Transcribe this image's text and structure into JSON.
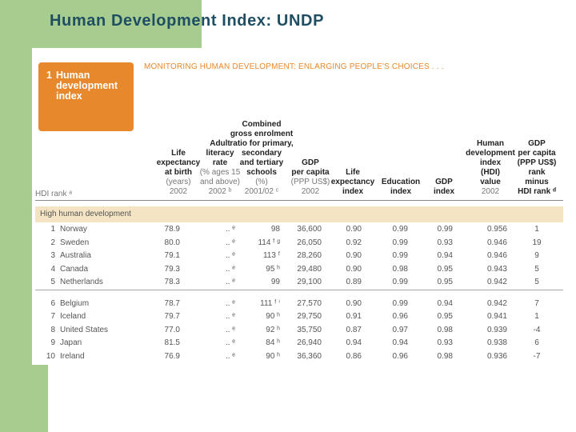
{
  "slide_title": "Human Development Index: UNDP",
  "report": {
    "box_number": "1",
    "box_lines": [
      "Human",
      "development",
      "index"
    ],
    "heading": "MONITORING HUMAN DEVELOPMENT: ENLARGING PEOPLE'S CHOICES . . .",
    "hdi_rank_label": "HDI rank ᵃ"
  },
  "columns": [
    {
      "bold": [
        "Life",
        "expectancy",
        "at birth"
      ],
      "gray": [
        "(years)",
        "2002"
      ]
    },
    {
      "bold": [
        "Adult",
        "literacy",
        "rate"
      ],
      "gray": [
        "(% ages 15",
        "and above)",
        "2002 ᵇ"
      ]
    },
    {
      "bold": [
        "Combined",
        "gross enrolment",
        "ratio for primary,",
        "secondary",
        "and tertiary",
        "schools"
      ],
      "gray": [
        "(%)",
        "2001/02 ᶜ"
      ]
    },
    {
      "bold": [
        "GDP",
        "per capita"
      ],
      "gray": [
        "(PPP US$)",
        "2002"
      ]
    },
    {
      "bold": [
        "Life",
        "expectancy",
        "index"
      ],
      "gray": []
    },
    {
      "bold": [
        "Education",
        "index"
      ],
      "gray": []
    },
    {
      "bold": [
        "GDP",
        "index"
      ],
      "gray": []
    },
    {
      "bold": [
        "Human",
        "development",
        "index",
        "(HDI)",
        "value"
      ],
      "gray": [
        "2002"
      ]
    },
    {
      "bold": [
        "GDP",
        "per capita",
        "(PPP US$)",
        "rank",
        "minus",
        "HDI rank ᵈ"
      ],
      "gray": []
    }
  ],
  "group_label": "High human development",
  "rows": [
    {
      "rank": "1",
      "country": "Norway",
      "life": "78.9",
      "literacy": ".. ᵉ",
      "enrol": "98",
      "gdp": "36,600",
      "lei": "0.90",
      "edu": "0.99",
      "gdpi": "0.99",
      "hdi": "0.956",
      "diff": "1"
    },
    {
      "rank": "2",
      "country": "Sweden",
      "life": "80.0",
      "literacy": ".. ᵉ",
      "enrol": "114 ᶠ ᵍ",
      "gdp": "26,050",
      "lei": "0.92",
      "edu": "0.99",
      "gdpi": "0.93",
      "hdi": "0.946",
      "diff": "19"
    },
    {
      "rank": "3",
      "country": "Australia",
      "life": "79.1",
      "literacy": ".. ᵉ",
      "enrol": "113 ᶠ",
      "gdp": "28,260",
      "lei": "0.90",
      "edu": "0.99",
      "gdpi": "0.94",
      "hdi": "0.946",
      "diff": "9"
    },
    {
      "rank": "4",
      "country": "Canada",
      "life": "79.3",
      "literacy": ".. ᵉ",
      "enrol": "95 ʰ",
      "gdp": "29,480",
      "lei": "0.90",
      "edu": "0.98",
      "gdpi": "0.95",
      "hdi": "0.943",
      "diff": "5"
    },
    {
      "rank": "5",
      "country": "Netherlands",
      "life": "78.3",
      "literacy": ".. ᵉ",
      "enrol": "99",
      "gdp": "29,100",
      "lei": "0.89",
      "edu": "0.99",
      "gdpi": "0.95",
      "hdi": "0.942",
      "diff": "5"
    },
    {
      "rank": "6",
      "country": "Belgium",
      "life": "78.7",
      "literacy": ".. ᵉ",
      "enrol": "111 ᶠ ⁱ",
      "gdp": "27,570",
      "lei": "0.90",
      "edu": "0.99",
      "gdpi": "0.94",
      "hdi": "0.942",
      "diff": "7"
    },
    {
      "rank": "7",
      "country": "Iceland",
      "life": "79.7",
      "literacy": ".. ᵉ",
      "enrol": "90 ʰ",
      "gdp": "29,750",
      "lei": "0.91",
      "edu": "0.96",
      "gdpi": "0.95",
      "hdi": "0.941",
      "diff": "1"
    },
    {
      "rank": "8",
      "country": "United States",
      "life": "77.0",
      "literacy": ".. ᵉ",
      "enrol": "92 ʰ",
      "gdp": "35,750",
      "lei": "0.87",
      "edu": "0.97",
      "gdpi": "0.98",
      "hdi": "0.939",
      "diff": "-4"
    },
    {
      "rank": "9",
      "country": "Japan",
      "life": "81.5",
      "literacy": ".. ᵉ",
      "enrol": "84 ʰ",
      "gdp": "26,940",
      "lei": "0.94",
      "edu": "0.94",
      "gdpi": "0.93",
      "hdi": "0.938",
      "diff": "6"
    },
    {
      "rank": "10",
      "country": "Ireland",
      "life": "76.9",
      "literacy": ".. ᵉ",
      "enrol": "90 ʰ",
      "gdp": "36,360",
      "lei": "0.86",
      "edu": "0.96",
      "gdpi": "0.98",
      "hdi": "0.936",
      "diff": "-7"
    }
  ]
}
